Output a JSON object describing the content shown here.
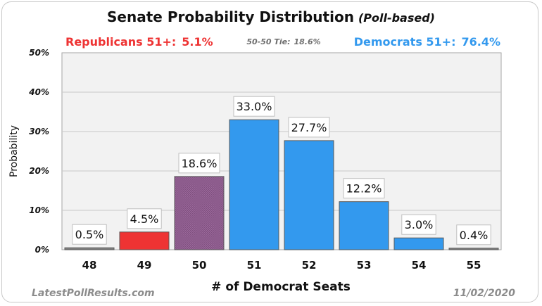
{
  "chart_data": {
    "type": "bar",
    "title": "Senate Probability Distribution",
    "title_suffix": "(Poll-based)",
    "xlabel": "# of Democrat Seats",
    "ylabel": "Probability",
    "categories": [
      "48",
      "49",
      "50",
      "51",
      "52",
      "53",
      "54",
      "55"
    ],
    "values": [
      0.5,
      4.5,
      18.6,
      33.0,
      27.7,
      12.2,
      3.0,
      0.4
    ],
    "data_labels": [
      "0.5%",
      "4.5%",
      "18.6%",
      "33.0%",
      "27.7%",
      "12.2%",
      "3.0%",
      "0.4%"
    ],
    "bar_colors": [
      "#808080",
      "#ee3333",
      "#9c6a9c",
      "#3399ee",
      "#3399ee",
      "#3399ee",
      "#3399ee",
      "#808080"
    ],
    "ylim": [
      0,
      50
    ],
    "yticks": [
      0,
      10,
      20,
      30,
      40,
      50
    ],
    "ytick_labels": [
      "0%",
      "10%",
      "20%",
      "30%",
      "40%",
      "50%"
    ],
    "grid": true,
    "plot_background": "#f2f2f2",
    "annotations": {
      "republicans_label": "Republicans 51+:",
      "republicans_value": "5.1%",
      "republicans_color": "#ee3333",
      "tie_label": "50-50 Tie:",
      "tie_value": "18.6%",
      "democrats_label": "Democrats 51+:",
      "democrats_value": "76.4%",
      "democrats_color": "#3399ee"
    },
    "footer_left": "LatestPollResults.com",
    "footer_right": "11/02/2020"
  }
}
